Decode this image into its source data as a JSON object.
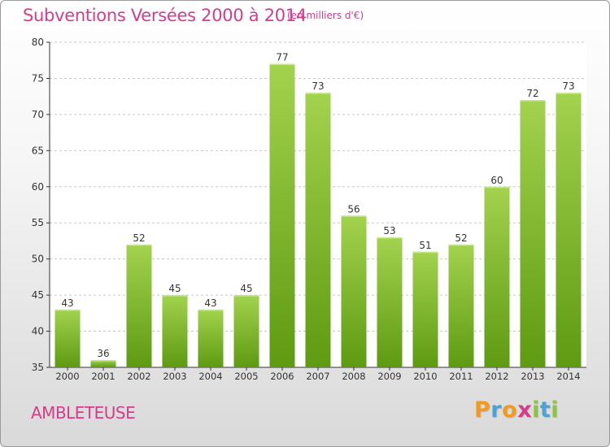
{
  "header": {
    "title": "Subventions Versées 2000 à 2014",
    "unit": "(en milliers d'€)"
  },
  "footer": {
    "commune": "AMBLETEUSE",
    "brand": "Proxiti",
    "brand_letters": [
      {
        "ch": "P",
        "color": "#f29a1f"
      },
      {
        "ch": "r",
        "color": "#4aa3d8"
      },
      {
        "ch": "o",
        "color": "#f29a1f"
      },
      {
        "ch": "x",
        "color": "#d63c8c"
      },
      {
        "ch": "i",
        "color": "#8cc63f"
      },
      {
        "ch": "t",
        "color": "#4aa3d8"
      },
      {
        "ch": "i",
        "color": "#8cc63f"
      }
    ]
  },
  "colors": {
    "bar_top": "#a3d24f",
    "bar_bottom": "#5e9a12",
    "title": "#d63c8c",
    "grid": "#c8c8c8",
    "axis": "#333333"
  },
  "chart_data": {
    "type": "bar",
    "title": "Subventions Versées 2000 à 2014",
    "subtitle": "(en milliers d'€)",
    "xlabel": "",
    "ylabel": "",
    "categories": [
      "2000",
      "2001",
      "2002",
      "2003",
      "2004",
      "2005",
      "2006",
      "2007",
      "2008",
      "2009",
      "2010",
      "2011",
      "2012",
      "2013",
      "2014"
    ],
    "values": [
      43,
      36,
      52,
      45,
      43,
      45,
      77,
      73,
      56,
      53,
      51,
      52,
      60,
      72,
      73
    ],
    "ylim": [
      35,
      80
    ],
    "yticks": [
      35,
      40,
      45,
      50,
      55,
      60,
      65,
      70,
      75,
      80
    ],
    "grid": "horizontal-dashed",
    "data_labels": true
  }
}
